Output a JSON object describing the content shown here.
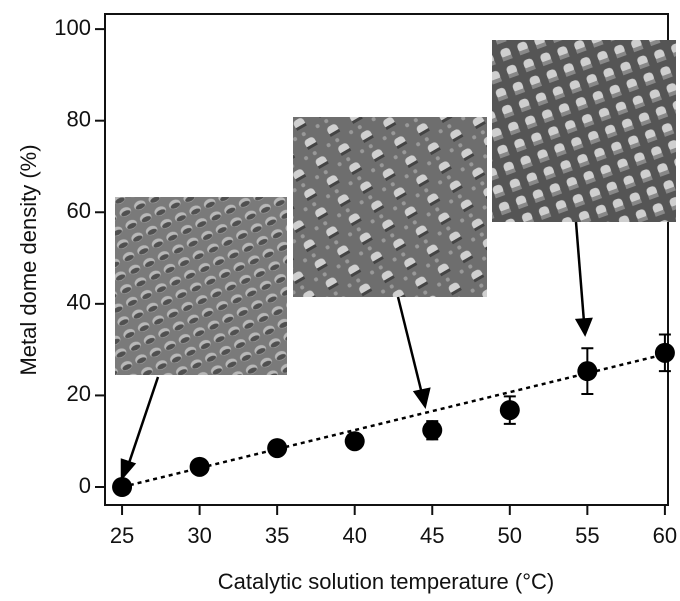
{
  "chart_data": {
    "type": "scatter",
    "x_label": "Catalytic solution temperature (°C)",
    "y_label": "Metal dome density (%)",
    "series": [
      {
        "color": "#000000",
        "x": [
          25,
          30,
          35,
          40,
          45,
          50,
          55,
          60
        ],
        "values": [
          0,
          4.4,
          8.5,
          10,
          12.4,
          16.8,
          25.3,
          29.3
        ],
        "errors": [
          0.5,
          0.8,
          1,
          1,
          2,
          3,
          5,
          4
        ]
      }
    ],
    "trend_line": {
      "x": [
        25,
        60
      ],
      "values": [
        0,
        29
      ]
    },
    "xlim": [
      23.9,
      60.2
    ],
    "xticks": [
      25,
      30,
      35,
      40,
      45,
      50,
      55,
      60
    ],
    "ylim": [
      -3.93,
      103.3
    ],
    "yticks": [
      0,
      20,
      40,
      60,
      80,
      100
    ]
  }
}
